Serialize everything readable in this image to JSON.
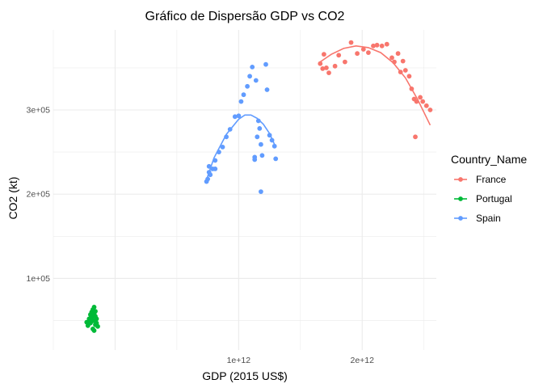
{
  "chart_data": {
    "type": "scatter",
    "title": "Gráfico de Dispersão GDP vs CO2",
    "xlabel": "GDP (2015 US$)",
    "ylabel": "CO2 (kt)",
    "xlim": [
      -500000000000.0,
      2600000000000.0
    ],
    "ylim": [
      15000,
      395000
    ],
    "x_ticks": [
      1000000000000.0,
      2000000000000.0
    ],
    "x_tick_labels": [
      "1e+12",
      "2e+12"
    ],
    "y_ticks": [
      100000,
      200000,
      300000
    ],
    "y_tick_labels": [
      "1e+05",
      "2e+05",
      "3e+05"
    ],
    "grid": true,
    "legend_position": "right",
    "legend_title": "Country_Name",
    "series": [
      {
        "name": "France",
        "color": "#F8766D",
        "points": [
          [
            1660000000000.0,
            355000
          ],
          [
            1680000000000.0,
            349000
          ],
          [
            1710000000000.0,
            350000
          ],
          [
            1690000000000.0,
            366000
          ],
          [
            1730000000000.0,
            344000
          ],
          [
            1780000000000.0,
            352000
          ],
          [
            1810000000000.0,
            365000
          ],
          [
            1860000000000.0,
            357000
          ],
          [
            1910000000000.0,
            380000
          ],
          [
            1960000000000.0,
            367000
          ],
          [
            2010000000000.0,
            372000
          ],
          [
            2050000000000.0,
            368000
          ],
          [
            2090000000000.0,
            376000
          ],
          [
            2120000000000.0,
            377000
          ],
          [
            2160000000000.0,
            376000
          ],
          [
            2200000000000.0,
            378000
          ],
          [
            2240000000000.0,
            362000
          ],
          [
            2260000000000.0,
            357000
          ],
          [
            2290000000000.0,
            367000
          ],
          [
            2310000000000.0,
            345000
          ],
          [
            2330000000000.0,
            358000
          ],
          [
            2350000000000.0,
            347000
          ],
          [
            2380000000000.0,
            340000
          ],
          [
            2400000000000.0,
            325000
          ],
          [
            2420000000000.0,
            313000
          ],
          [
            2440000000000.0,
            310000
          ],
          [
            2470000000000.0,
            315000
          ],
          [
            2490000000000.0,
            310000
          ],
          [
            2520000000000.0,
            305000
          ],
          [
            2550000000000.0,
            300000
          ],
          [
            2430000000000.0,
            268000
          ]
        ],
        "fit": [
          [
            1650000000000.0,
            356000
          ],
          [
            1750000000000.0,
            366000
          ],
          [
            1850000000000.0,
            373000
          ],
          [
            1950000000000.0,
            376000
          ],
          [
            2050000000000.0,
            374000
          ],
          [
            2150000000000.0,
            368000
          ],
          [
            2250000000000.0,
            356000
          ],
          [
            2350000000000.0,
            338000
          ],
          [
            2450000000000.0,
            312000
          ],
          [
            2550000000000.0,
            282000
          ]
        ]
      },
      {
        "name": "Portugal",
        "color": "#00BA38",
        "points": [
          [
            -230000000000.0,
            48000
          ],
          [
            -220000000000.0,
            44000
          ],
          [
            -210000000000.0,
            52000
          ],
          [
            -200000000000.0,
            57000
          ],
          [
            -200000000000.0,
            47000
          ],
          [
            -190000000000.0,
            60000
          ],
          [
            -190000000000.0,
            53000
          ],
          [
            -180000000000.0,
            63000
          ],
          [
            -180000000000.0,
            56000
          ],
          [
            -170000000000.0,
            66000
          ],
          [
            -170000000000.0,
            58000
          ],
          [
            -170000000000.0,
            50000
          ],
          [
            -160000000000.0,
            61000
          ],
          [
            -160000000000.0,
            55000
          ],
          [
            -160000000000.0,
            45000
          ],
          [
            -180000000000.0,
            40000
          ],
          [
            -150000000000.0,
            52000
          ],
          [
            -150000000000.0,
            47000
          ],
          [
            -190000000000.0,
            49000
          ],
          [
            -200000000000.0,
            52000
          ],
          [
            -170000000000.0,
            38000
          ],
          [
            -140000000000.0,
            43000
          ]
        ],
        "fit": [
          [
            -230000000000.0,
            47000
          ],
          [
            -200000000000.0,
            51000
          ],
          [
            -170000000000.0,
            56000
          ],
          [
            -150000000000.0,
            60000
          ]
        ]
      },
      {
        "name": "Spain",
        "color": "#619CFF",
        "points": [
          [
            740000000000.0,
            215000
          ],
          [
            750000000000.0,
            218000
          ],
          [
            760000000000.0,
            226000
          ],
          [
            760000000000.0,
            233000
          ],
          [
            770000000000.0,
            223000
          ],
          [
            790000000000.0,
            230000
          ],
          [
            810000000000.0,
            240000
          ],
          [
            810000000000.0,
            230000
          ],
          [
            840000000000.0,
            250000
          ],
          [
            870000000000.0,
            256000
          ],
          [
            900000000000.0,
            268000
          ],
          [
            930000000000.0,
            277000
          ],
          [
            970000000000.0,
            292000
          ],
          [
            1000000000000.0,
            293000
          ],
          [
            1020000000000.0,
            310000
          ],
          [
            1040000000000.0,
            318000
          ],
          [
            1070000000000.0,
            328000
          ],
          [
            1090000000000.0,
            340000
          ],
          [
            1110000000000.0,
            351000
          ],
          [
            1130000000000.0,
            244000
          ],
          [
            1130000000000.0,
            241000
          ],
          [
            1150000000000.0,
            268000
          ],
          [
            1160000000000.0,
            287000
          ],
          [
            1170000000000.0,
            278000
          ],
          [
            1180000000000.0,
            259000
          ],
          [
            1190000000000.0,
            246000
          ],
          [
            1220000000000.0,
            354000
          ],
          [
            1230000000000.0,
            324000
          ],
          [
            1250000000000.0,
            270000
          ],
          [
            1270000000000.0,
            264000
          ],
          [
            1290000000000.0,
            257000
          ],
          [
            1300000000000.0,
            242000
          ],
          [
            1180000000000.0,
            203000
          ],
          [
            1140000000000.0,
            335000
          ]
        ],
        "fit": [
          [
            730000000000.0,
            213000
          ],
          [
            800000000000.0,
            243000
          ],
          [
            900000000000.0,
            271000
          ],
          [
            1000000000000.0,
            289000
          ],
          [
            1050000000000.0,
            294000
          ],
          [
            1100000000000.0,
            294000
          ],
          [
            1150000000000.0,
            290000
          ],
          [
            1200000000000.0,
            283000
          ],
          [
            1250000000000.0,
            272000
          ],
          [
            1300000000000.0,
            256000
          ]
        ]
      }
    ]
  }
}
